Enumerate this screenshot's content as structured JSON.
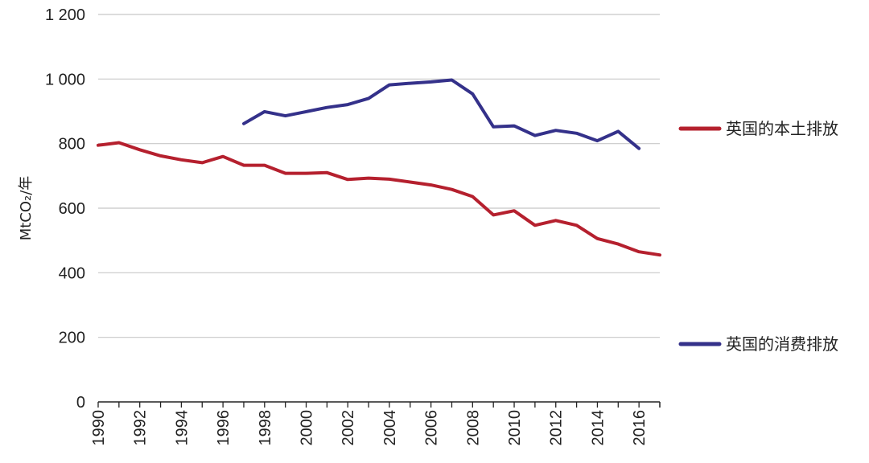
{
  "chart_data": {
    "type": "line",
    "title": "",
    "xlabel": "",
    "ylabel": "MtCO₂/年",
    "ylim": [
      0,
      1200
    ],
    "xlim": [
      1990,
      2017
    ],
    "grid": "horizontal",
    "legend_position": "right",
    "y_ticks": [
      0,
      200,
      400,
      600,
      800,
      1000,
      1200
    ],
    "y_tick_labels": [
      "0",
      "200",
      "400",
      "600",
      "800",
      "1 000",
      "1 200"
    ],
    "x_tick_labels": [
      "1990",
      "1992",
      "1994",
      "1996",
      "1998",
      "2000",
      "2002",
      "2004",
      "2006",
      "2008",
      "2010",
      "2012",
      "2014",
      "2016"
    ],
    "series": [
      {
        "name": "英国的本土排放",
        "color": "#B5202E",
        "x": [
          1990,
          1991,
          1992,
          1993,
          1994,
          1995,
          1996,
          1997,
          1998,
          1999,
          2000,
          2001,
          2002,
          2003,
          2004,
          2005,
          2006,
          2007,
          2008,
          2009,
          2010,
          2011,
          2012,
          2013,
          2014,
          2015,
          2016,
          2017
        ],
        "values": [
          795,
          803,
          781,
          762,
          750,
          741,
          760,
          733,
          733,
          708,
          708,
          710,
          689,
          693,
          690,
          681,
          672,
          658,
          636,
          579,
          592,
          547,
          562,
          547,
          506,
          489,
          465,
          455
        ]
      },
      {
        "name": "英国的消费排放",
        "color": "#34318A",
        "x": [
          1997,
          1998,
          1999,
          2000,
          2001,
          2002,
          2003,
          2004,
          2005,
          2006,
          2007,
          2008,
          2009,
          2010,
          2011,
          2012,
          2013,
          2014,
          2015,
          2016
        ],
        "values": [
          862,
          899,
          886,
          899,
          912,
          921,
          940,
          982,
          987,
          991,
          997,
          954,
          852,
          855,
          825,
          841,
          832,
          809,
          838,
          785
        ]
      }
    ]
  }
}
